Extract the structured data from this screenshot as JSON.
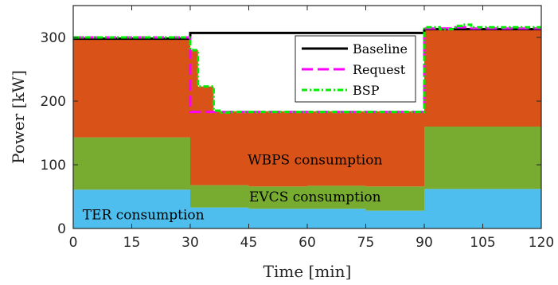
{
  "chart_data": {
    "type": "area",
    "xlabel": "Time [min]",
    "ylabel": "Power [kW]",
    "xlim": [
      0,
      120
    ],
    "ylim": [
      0,
      350
    ],
    "xticks": [
      0,
      15,
      30,
      45,
      60,
      75,
      90,
      105,
      120
    ],
    "yticks": [
      0,
      100,
      200,
      300
    ],
    "grid": false,
    "legend_position": "top-right",
    "colors": {
      "TER": "#4DBEEE",
      "EVCS": "#77AC30",
      "WBPS": "#D95319",
      "Baseline": "#000000",
      "Request": "#FF00FF",
      "BSP": "#00EE00"
    },
    "stacked_areas": [
      {
        "id": "ter",
        "color": "#4DBEEE",
        "x": [
          0,
          30,
          30,
          45,
          45,
          75,
          75,
          90,
          90,
          120
        ],
        "top": [
          61,
          61,
          33,
          33,
          31,
          31,
          28,
          28,
          62,
          62
        ]
      },
      {
        "id": "evcs",
        "color": "#77AC30",
        "x": [
          0,
          30,
          30,
          45,
          45,
          60,
          60,
          75,
          75,
          90,
          90,
          120
        ],
        "top": [
          143,
          143,
          68,
          68,
          66,
          66,
          67,
          67,
          66,
          66,
          160,
          160
        ]
      },
      {
        "id": "wbps",
        "color": "#D95319",
        "x": [
          0,
          30,
          30,
          32,
          32,
          36,
          36,
          90,
          90,
          120
        ],
        "top": [
          299,
          299,
          280,
          280,
          223,
          223,
          184,
          184,
          315,
          315
        ]
      }
    ],
    "series": [
      {
        "name": "Baseline",
        "color": "#000000",
        "dash": "none",
        "x": [
          0,
          30,
          30,
          90,
          90,
          120
        ],
        "y": [
          298,
          298,
          307,
          307,
          313,
          313
        ]
      },
      {
        "name": "Request",
        "color": "#FF00FF",
        "dash": "14 6",
        "x": [
          0,
          30,
          30,
          90,
          90,
          98,
          98,
          102,
          102,
          120
        ],
        "y": [
          300,
          300,
          183,
          183,
          314,
          314,
          316,
          316,
          314,
          314
        ]
      },
      {
        "name": "BSP",
        "color": "#00EE00",
        "dash": "7 3 2 3",
        "x": [
          0,
          30,
          30,
          32,
          32,
          36,
          36,
          38,
          38,
          40,
          40,
          90,
          90,
          94,
          94,
          98,
          98,
          100,
          100,
          102,
          102,
          120
        ],
        "y": [
          300,
          300,
          280,
          280,
          223,
          223,
          185,
          185,
          182,
          182,
          183,
          183,
          316,
          316,
          313,
          313,
          318,
          318,
          320,
          320,
          316,
          316
        ]
      }
    ],
    "annotations": [
      {
        "text": "WBPS consumption",
        "x": 62,
        "y": 108
      },
      {
        "text": "EVCS consumption",
        "x": 62,
        "y": 50
      },
      {
        "text": "TER consumption",
        "x": 18,
        "y": 22
      }
    ],
    "legend": {
      "entries": [
        "Baseline",
        "Request",
        "BSP"
      ]
    }
  }
}
